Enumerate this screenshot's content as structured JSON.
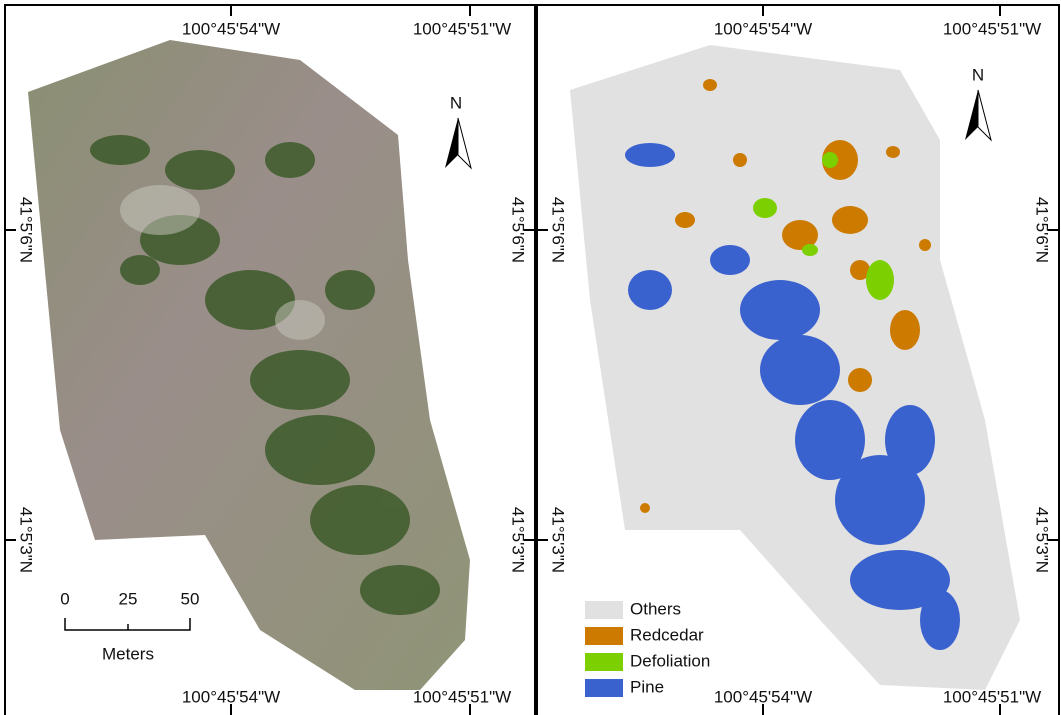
{
  "panels": [
    {
      "top_labels": [
        "100°45'54\"W",
        "100°45'51\"W"
      ],
      "bottom_labels": [
        "100°45'54\"W",
        "100°45'51\"W"
      ],
      "left_labels": [
        "41°5'6\"N",
        "41°5'3\"N"
      ],
      "right_labels": [
        "41°5'6\"N",
        "41°5'3\"N"
      ],
      "north": "N"
    },
    {
      "top_labels": [
        "100°45'54\"W",
        "100°45'51\"W"
      ],
      "bottom_labels": [
        "100°45'54\"W",
        "100°45'51\"W"
      ],
      "left_labels": [
        "41°5'6\"N",
        "41°5'3\"N"
      ],
      "right_labels": [
        "41°5'6\"N",
        "41°5'3\"N"
      ],
      "north": "N"
    }
  ],
  "scale_bar": {
    "ticks": [
      0,
      25,
      50
    ],
    "unit": "Meters"
  },
  "legend": [
    {
      "label": "Others",
      "color": "#e1e1e1"
    },
    {
      "label": "Redcedar",
      "color": "#cc7a00"
    },
    {
      "label": "Defoliation",
      "color": "#7ccf00"
    },
    {
      "label": "Pine",
      "color": "#3a62cf"
    }
  ]
}
